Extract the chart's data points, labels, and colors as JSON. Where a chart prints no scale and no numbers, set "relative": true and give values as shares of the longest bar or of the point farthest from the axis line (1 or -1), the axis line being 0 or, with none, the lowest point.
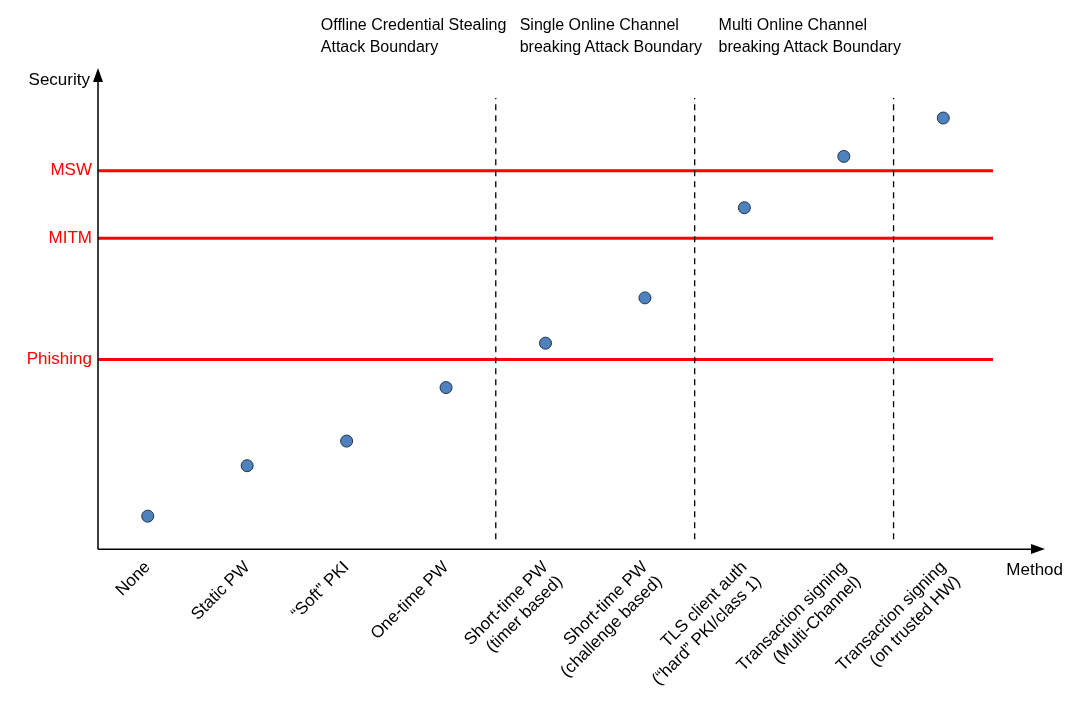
{
  "chart_data": {
    "type": "scatter",
    "relative": true,
    "xlabel": "Method",
    "ylabel": "Security",
    "categories": [
      "None",
      "Static PW",
      "“Soft” PKI",
      "One-time PW",
      "Short-time PW\n(timer based)",
      "Short-time PW\n(challenge based)",
      "TLS client auth\n(“hard” PKI/class 1)",
      "Transaction signing\n(Multi-Channel)",
      "Transaction signing\n(on trusted HW)"
    ],
    "series": [
      {
        "color": "#4f81bd",
        "values": [
          0.077,
          0.194,
          0.251,
          0.375,
          0.478,
          0.583,
          0.792,
          0.911,
          1
        ]
      }
    ],
    "marker": "circle",
    "grid": false,
    "legend": false,
    "ref_lines": [
      {
        "axis": "y",
        "value": 0.878,
        "label": "MSW",
        "color": "#ff0000",
        "line_style": "solid"
      },
      {
        "axis": "y",
        "value": 0.721,
        "label": "MITM",
        "color": "#ff0000",
        "line_style": "solid"
      },
      {
        "axis": "y",
        "value": 0.44,
        "label": "Phishing",
        "color": "#ff0000",
        "line_style": "solid"
      }
    ],
    "annotations": [
      "Offline Credential Stealing Attack Boundary",
      "Single Online Channel breaking Attack Boundary",
      "Multi Online Channel breaking Attack Boundary"
    ]
  }
}
